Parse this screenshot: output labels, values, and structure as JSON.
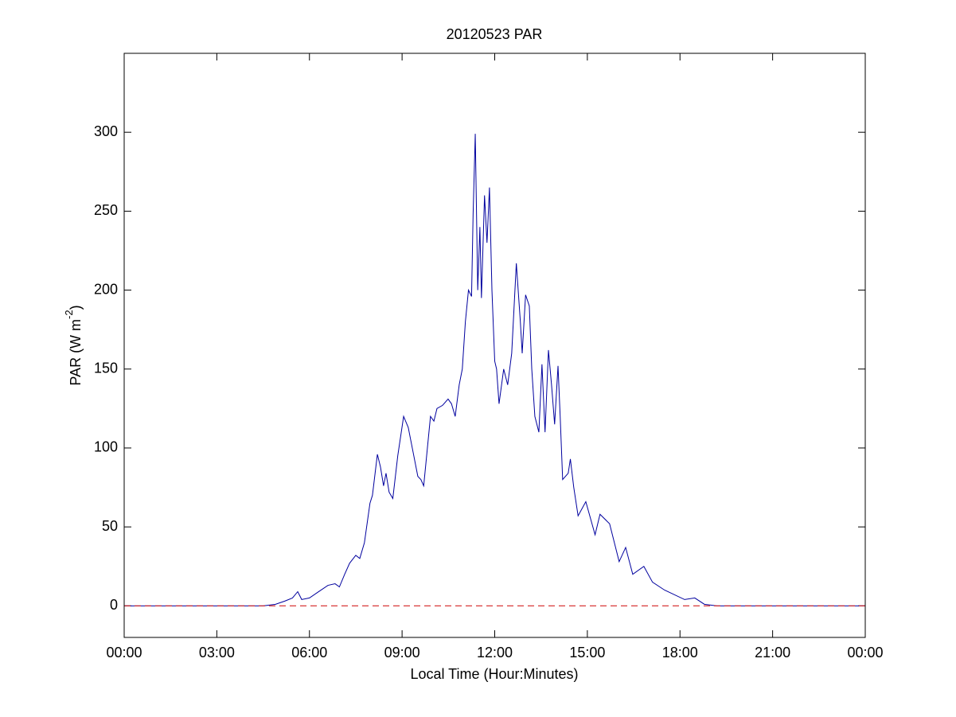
{
  "chart_data": {
    "type": "line",
    "title": "20120523 PAR",
    "xlabel": "Local Time (Hour:Minutes)",
    "ylabel": {
      "text": "PAR (W m",
      "superscript": "-2",
      "suffix": ")"
    },
    "xlim": [
      0,
      24
    ],
    "ylim": [
      -20,
      350
    ],
    "xticks": [
      {
        "value": 0,
        "label": "00:00"
      },
      {
        "value": 3,
        "label": "03:00"
      },
      {
        "value": 6,
        "label": "06:00"
      },
      {
        "value": 9,
        "label": "09:00"
      },
      {
        "value": 12,
        "label": "12:00"
      },
      {
        "value": 15,
        "label": "15:00"
      },
      {
        "value": 18,
        "label": "18:00"
      },
      {
        "value": 21,
        "label": "21:00"
      },
      {
        "value": 24,
        "label": "00:00"
      }
    ],
    "yticks": [
      0,
      50,
      100,
      150,
      200,
      250,
      300
    ],
    "grid": false,
    "reference_line": {
      "value": 0,
      "color": "#d42020",
      "dashed": true
    },
    "x": [
      0,
      4.5,
      4.9,
      5.2,
      5.45,
      5.62,
      5.75,
      6.0,
      6.3,
      6.6,
      6.83,
      6.97,
      7.14,
      7.3,
      7.5,
      7.63,
      7.78,
      7.96,
      8.04,
      8.2,
      8.3,
      8.4,
      8.48,
      8.58,
      8.7,
      8.86,
      9.05,
      9.2,
      9.33,
      9.51,
      9.61,
      9.7,
      9.82,
      9.92,
      10.03,
      10.13,
      10.31,
      10.49,
      10.6,
      10.72,
      10.85,
      10.95,
      11.05,
      11.15,
      11.25,
      11.3,
      11.37,
      11.45,
      11.52,
      11.57,
      11.67,
      11.75,
      11.83,
      11.91,
      12.0,
      12.06,
      12.14,
      12.29,
      12.42,
      12.55,
      12.7,
      12.83,
      12.89,
      13.0,
      13.12,
      13.2,
      13.3,
      13.43,
      13.53,
      13.63,
      13.74,
      13.84,
      13.94,
      14.05,
      14.12,
      14.2,
      14.38,
      14.45,
      14.56,
      14.7,
      14.95,
      15.25,
      15.41,
      15.72,
      16.03,
      16.24,
      16.47,
      16.83,
      17.11,
      17.5,
      18.15,
      18.48,
      18.79,
      19.2,
      24
    ],
    "series": [
      {
        "color": "#00009e",
        "values": [
          0,
          0,
          1,
          3,
          5,
          9,
          4,
          5,
          9,
          13,
          14,
          12,
          20,
          27,
          32,
          30,
          40,
          65,
          70,
          96,
          88,
          76,
          84,
          72,
          68,
          95,
          120,
          113,
          100,
          82,
          80,
          76,
          100,
          120,
          117,
          125,
          127,
          131,
          128,
          120,
          140,
          150,
          180,
          200,
          196,
          248,
          299,
          200,
          240,
          195,
          260,
          230,
          265,
          200,
          155,
          150,
          128,
          150,
          140,
          160,
          217,
          180,
          160,
          197,
          190,
          150,
          120,
          110,
          153,
          110,
          162,
          140,
          115,
          152,
          120,
          80,
          84,
          93,
          75,
          57,
          66,
          45,
          58,
          52,
          28,
          37,
          20,
          25,
          15,
          10,
          4,
          5,
          1,
          0,
          0
        ]
      }
    ]
  }
}
